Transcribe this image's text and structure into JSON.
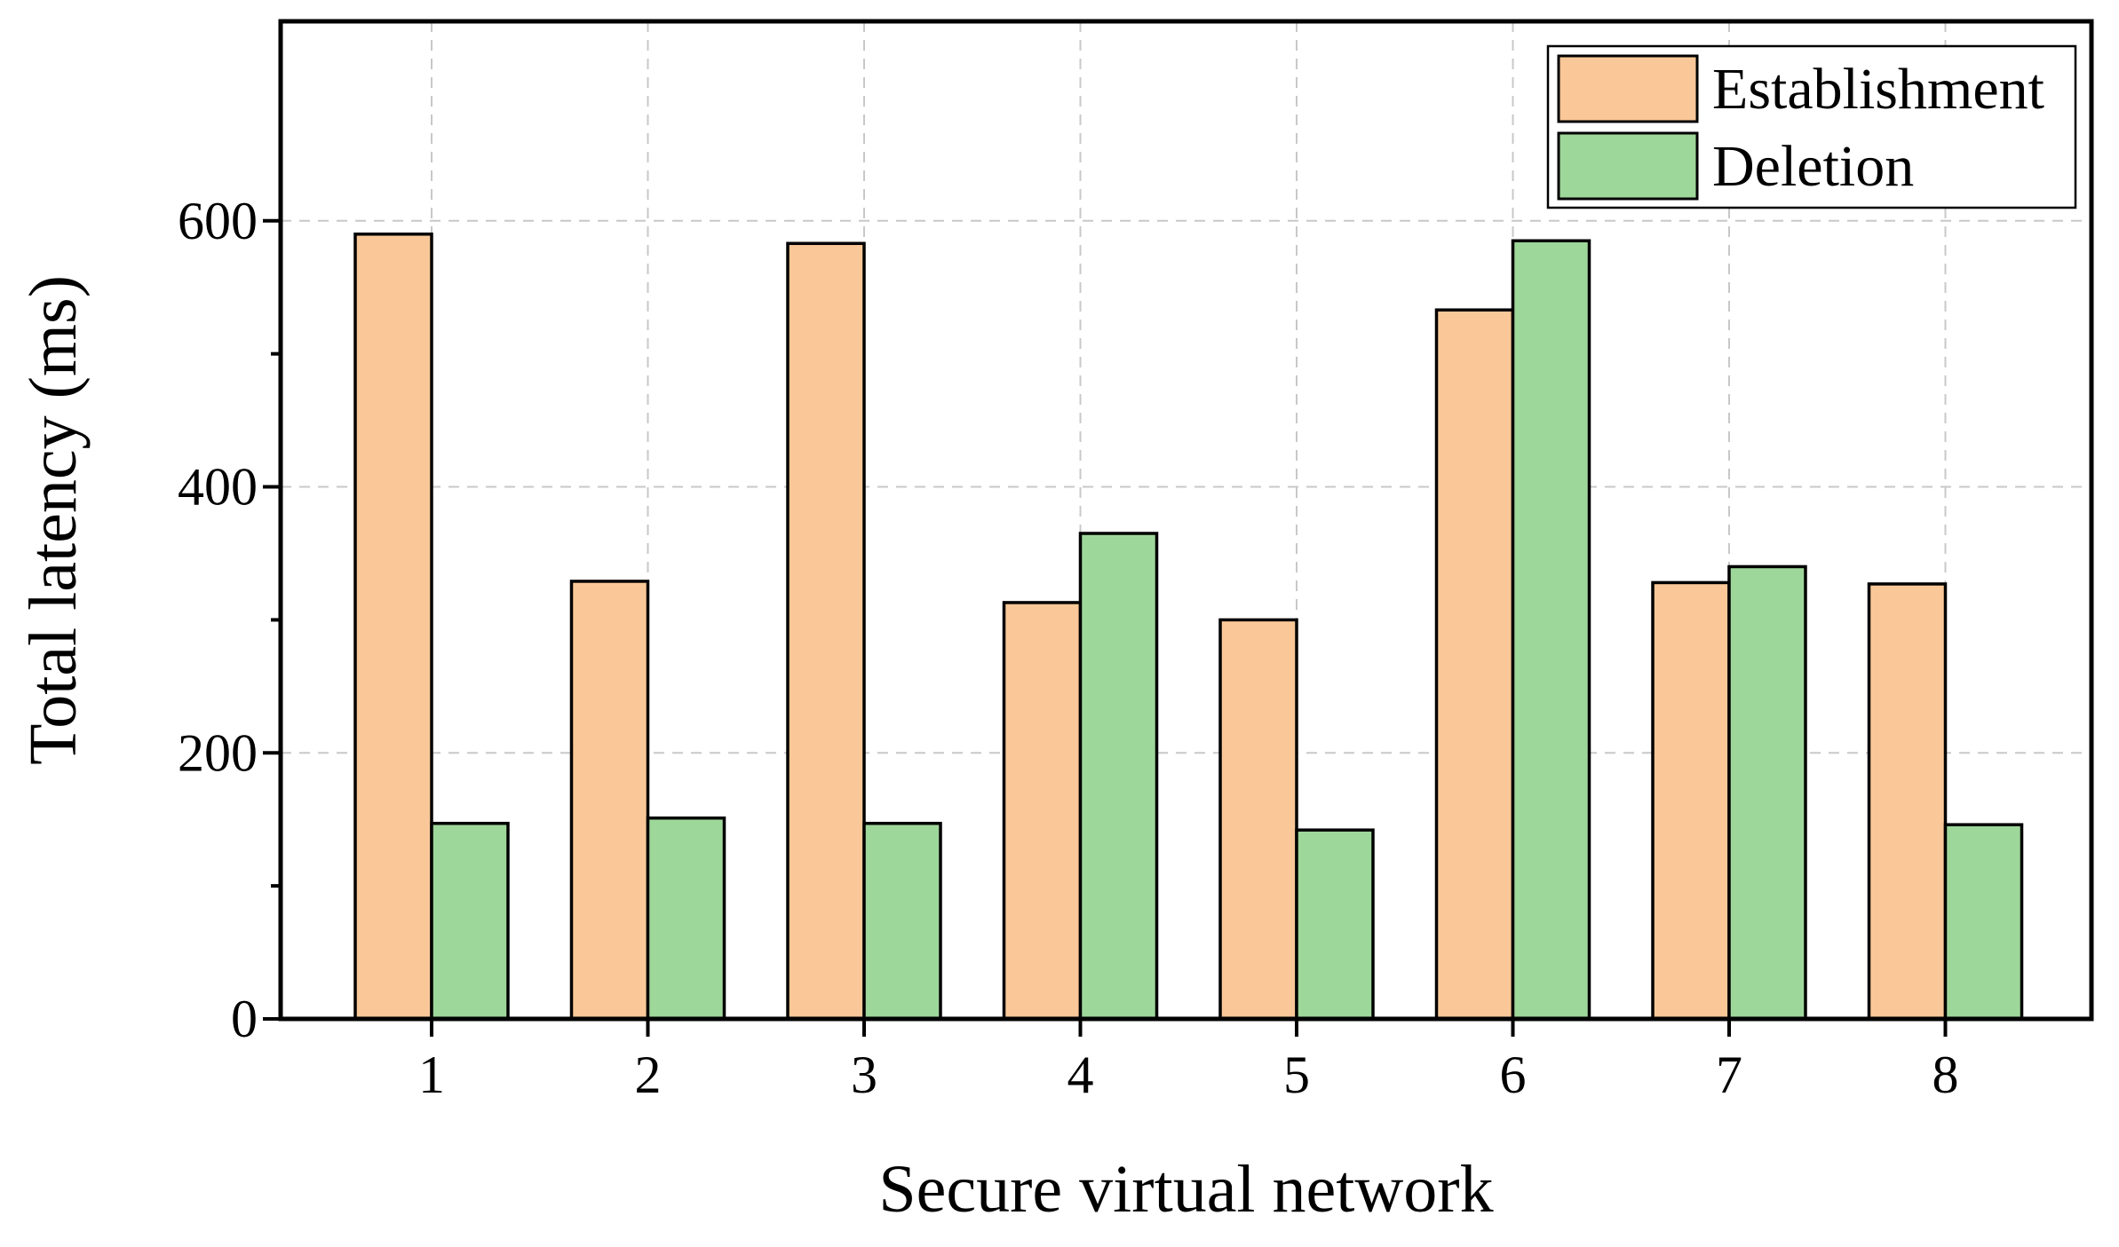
{
  "chart_data": {
    "type": "bar",
    "title": "",
    "xlabel": "Secure virtual network",
    "ylabel": "Total latency (ms)",
    "categories": [
      "1",
      "2",
      "3",
      "4",
      "5",
      "6",
      "7",
      "8"
    ],
    "series": [
      {
        "name": "Establishment",
        "color": "#fac898",
        "values": [
          590,
          329,
          583,
          313,
          300,
          533,
          328,
          327
        ]
      },
      {
        "name": "Deletion",
        "color": "#9ed79a",
        "values": [
          147,
          151,
          147,
          365,
          142,
          585,
          340,
          146
        ]
      }
    ],
    "ylim": [
      0,
      750
    ],
    "yticks": [
      0,
      200,
      400,
      600
    ],
    "grid": true,
    "legend_position": "top-right"
  }
}
